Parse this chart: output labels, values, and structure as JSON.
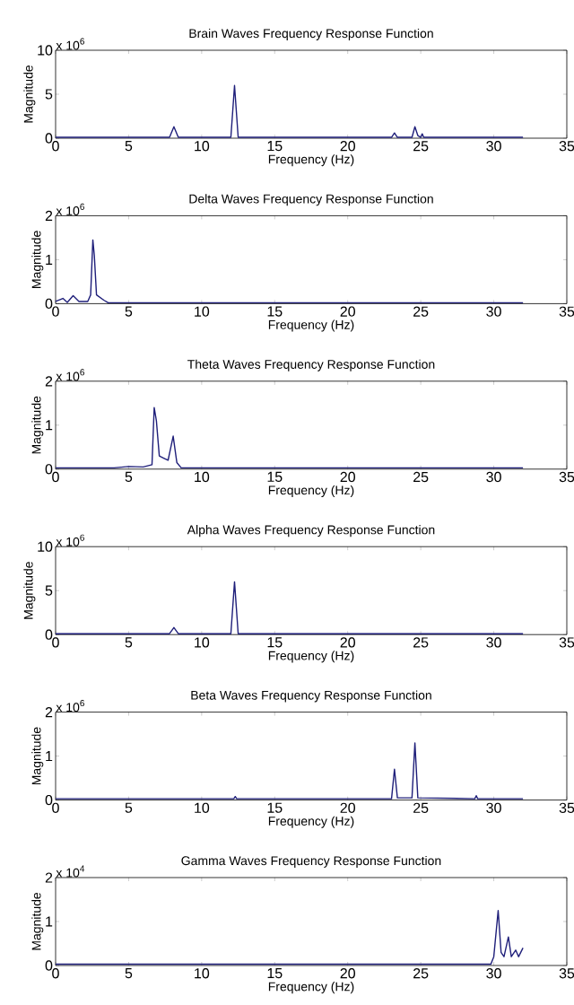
{
  "chart_data": [
    {
      "type": "line",
      "title": "Brain Waves Frequency Response Function",
      "xlabel": "Frequency (Hz)",
      "ylabel": "Magnitude",
      "annotations": [
        "x 10$^{6}$"
      ],
      "xlim": [
        0,
        35
      ],
      "xticks": [
        0,
        5,
        10,
        15,
        20,
        25,
        30,
        35
      ],
      "ylim": [
        0,
        10
      ],
      "yticks": [
        0,
        5,
        10
      ],
      "color": "#1f1f7a",
      "x": [
        0,
        7.8,
        8.1,
        8.4,
        12.0,
        12.25,
        12.5,
        23.0,
        23.2,
        23.4,
        24.4,
        24.6,
        24.8,
        25.0,
        25.1,
        25.2,
        32
      ],
      "values": [
        0.1,
        0.1,
        1.3,
        0.1,
        0.1,
        6.0,
        0.1,
        0.1,
        0.6,
        0.1,
        0.1,
        1.3,
        0.3,
        0.1,
        0.5,
        0.1,
        0.1
      ]
    },
    {
      "type": "line",
      "title": "Delta Waves Frequency Response Function",
      "xlabel": "Frequency (Hz)",
      "ylabel": "Magnitude",
      "annotations": [
        "x 10$^{6}$"
      ],
      "xlim": [
        0,
        35
      ],
      "xticks": [
        0,
        5,
        10,
        15,
        20,
        25,
        30,
        35
      ],
      "ylim": [
        0,
        2
      ],
      "yticks": [
        0,
        1,
        2
      ],
      "color": "#1f1f7a",
      "x": [
        0,
        0.5,
        0.8,
        1.2,
        1.6,
        2.2,
        2.4,
        2.55,
        2.65,
        2.8,
        3.3,
        3.6,
        32
      ],
      "values": [
        0.05,
        0.12,
        0.03,
        0.18,
        0.05,
        0.05,
        0.2,
        1.45,
        1.1,
        0.2,
        0.08,
        0.02,
        0.02
      ]
    },
    {
      "type": "line",
      "title": "Theta Waves Frequency Response Function",
      "xlabel": "Frequency (Hz)",
      "ylabel": "Magnitude",
      "annotations": [
        "x 10$^{6}$"
      ],
      "xlim": [
        0,
        35
      ],
      "xticks": [
        0,
        5,
        10,
        15,
        20,
        25,
        30,
        35
      ],
      "ylim": [
        0,
        2
      ],
      "yticks": [
        0,
        1,
        2
      ],
      "color": "#1f1f7a",
      "x": [
        0,
        4,
        5,
        6,
        6.6,
        6.75,
        6.9,
        7.1,
        7.4,
        7.7,
        8.05,
        8.3,
        8.6,
        32
      ],
      "values": [
        0.03,
        0.03,
        0.06,
        0.05,
        0.1,
        1.4,
        1.1,
        0.3,
        0.25,
        0.2,
        0.75,
        0.15,
        0.03,
        0.03
      ]
    },
    {
      "type": "line",
      "title": "Alpha Waves Frequency Response Function",
      "xlabel": "Frequency (Hz)",
      "ylabel": "Magnitude",
      "annotations": [
        "x 10$^{6}$"
      ],
      "xlim": [
        0,
        35
      ],
      "xticks": [
        0,
        5,
        10,
        15,
        20,
        25,
        30,
        35
      ],
      "ylim": [
        0,
        10
      ],
      "yticks": [
        0,
        5,
        10
      ],
      "color": "#1f1f7a",
      "x": [
        0,
        7.8,
        8.1,
        8.4,
        12.0,
        12.25,
        12.5,
        32
      ],
      "values": [
        0.1,
        0.1,
        0.8,
        0.1,
        0.1,
        6.0,
        0.1,
        0.1
      ]
    },
    {
      "type": "line",
      "title": "Beta Waves Frequency Response Function",
      "xlabel": "Frequency (Hz)",
      "ylabel": "Magnitude",
      "annotations": [
        "x 10$^{6}$"
      ],
      "xlim": [
        0,
        35
      ],
      "xticks": [
        0,
        5,
        10,
        15,
        20,
        25,
        30,
        35
      ],
      "ylim": [
        0,
        2
      ],
      "yticks": [
        0,
        1,
        2
      ],
      "color": "#1f1f7a",
      "x": [
        0,
        12.2,
        12.3,
        12.4,
        23.0,
        23.2,
        23.4,
        24.4,
        24.6,
        24.8,
        28.7,
        28.8,
        28.9,
        32
      ],
      "values": [
        0.03,
        0.03,
        0.08,
        0.03,
        0.03,
        0.7,
        0.05,
        0.05,
        1.3,
        0.05,
        0.03,
        0.1,
        0.03,
        0.03
      ]
    },
    {
      "type": "line",
      "title": "Gamma Waves Frequency Response Function",
      "xlabel": "Frequency (Hz)",
      "ylabel": "Magnitude",
      "annotations": [
        "x 10$^{4}$"
      ],
      "xlim": [
        0,
        35
      ],
      "xticks": [
        0,
        5,
        10,
        15,
        20,
        25,
        30,
        35
      ],
      "ylim": [
        0,
        2
      ],
      "yticks": [
        0,
        1,
        2
      ],
      "color": "#1f1f7a",
      "x": [
        0,
        29.8,
        30.0,
        30.3,
        30.5,
        30.7,
        31.0,
        31.2,
        31.5,
        31.7,
        32
      ],
      "values": [
        0.03,
        0.03,
        0.2,
        1.25,
        0.3,
        0.2,
        0.65,
        0.2,
        0.35,
        0.2,
        0.4
      ]
    }
  ]
}
